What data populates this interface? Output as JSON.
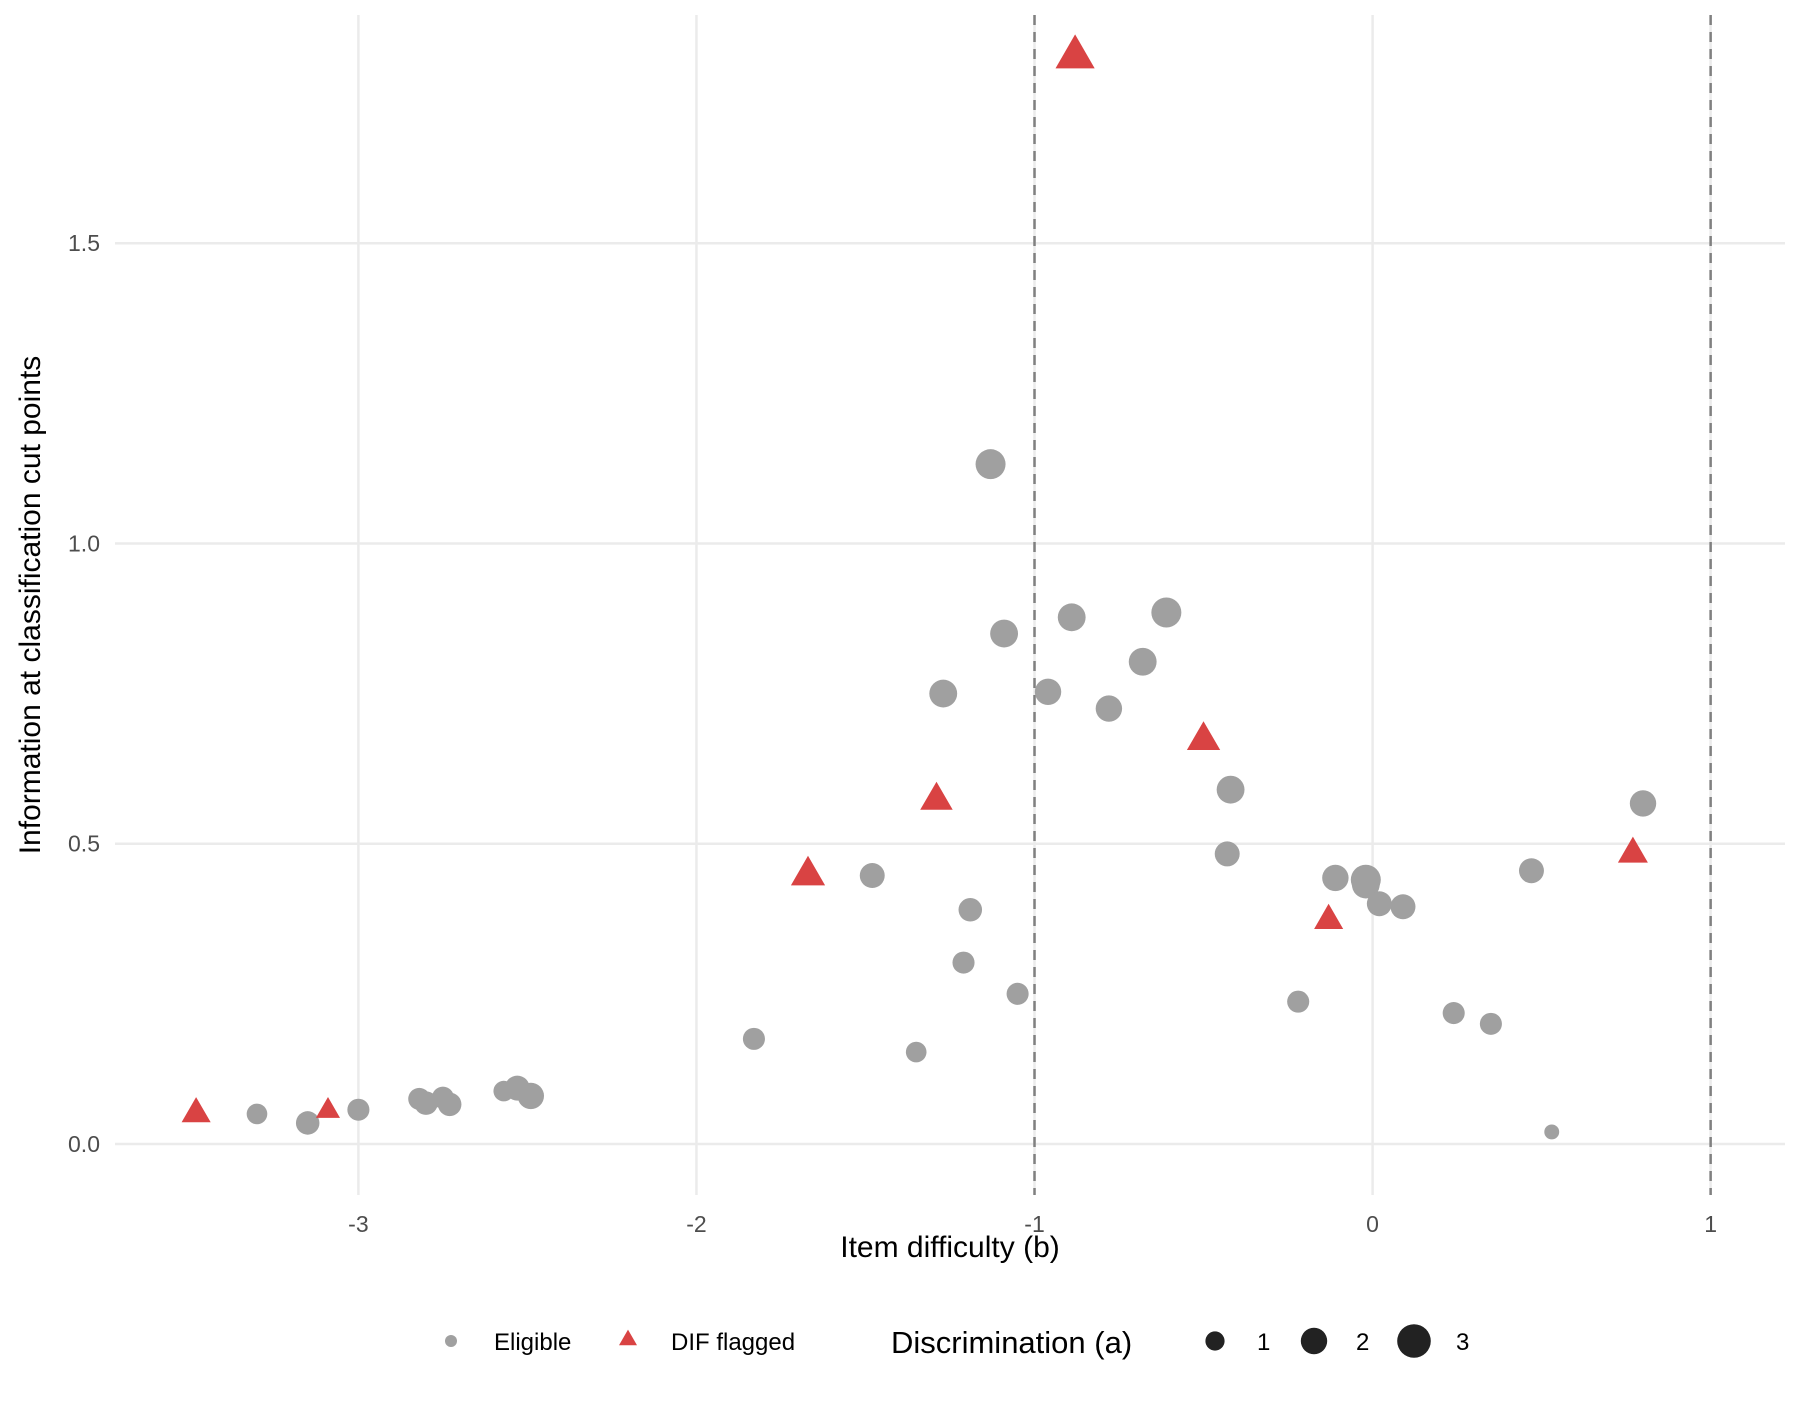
{
  "chart_data": {
    "type": "scatter",
    "xlabel": "Item difficulty (b)",
    "ylabel": "Information at classification cut points",
    "xlim": [
      -3.72,
      1.22
    ],
    "ylim": [
      -0.085,
      1.88
    ],
    "x_ticks": [
      -3,
      -2,
      -1,
      0,
      1
    ],
    "x_tick_labels": [
      "-3",
      "-2",
      "-1",
      "0",
      "1"
    ],
    "y_ticks": [
      0.0,
      0.5,
      1.0,
      1.5
    ],
    "y_tick_labels": [
      "0.0",
      "0.5",
      "1.0",
      "1.5"
    ],
    "grid": true,
    "cut_points": [
      -1,
      1
    ],
    "colors": {
      "eligible": "#a0a0a0",
      "dif": "#d94343",
      "grid": "#ebebeb",
      "cutline": "#808080",
      "size_key": "#222222"
    },
    "series": [
      {
        "name": "Eligible",
        "shape": "circle",
        "points": [
          {
            "x": -3.3,
            "y": 0.05,
            "a": 1.2
          },
          {
            "x": -3.15,
            "y": 0.035,
            "a": 1.6
          },
          {
            "x": -3.0,
            "y": 0.057,
            "a": 1.4
          },
          {
            "x": -2.82,
            "y": 0.075,
            "a": 1.4
          },
          {
            "x": -2.8,
            "y": 0.068,
            "a": 1.6
          },
          {
            "x": -2.75,
            "y": 0.077,
            "a": 1.4
          },
          {
            "x": -2.73,
            "y": 0.066,
            "a": 1.6
          },
          {
            "x": -2.57,
            "y": 0.088,
            "a": 1.2
          },
          {
            "x": -2.53,
            "y": 0.093,
            "a": 1.8
          },
          {
            "x": -2.49,
            "y": 0.08,
            "a": 2.0
          },
          {
            "x": -1.83,
            "y": 0.175,
            "a": 1.4
          },
          {
            "x": -1.48,
            "y": 0.447,
            "a": 1.8
          },
          {
            "x": -1.35,
            "y": 0.153,
            "a": 1.2
          },
          {
            "x": -1.27,
            "y": 0.75,
            "a": 2.2
          },
          {
            "x": -1.21,
            "y": 0.302,
            "a": 1.4
          },
          {
            "x": -1.19,
            "y": 0.39,
            "a": 1.6
          },
          {
            "x": -1.13,
            "y": 1.132,
            "a": 2.5
          },
          {
            "x": -1.09,
            "y": 0.85,
            "a": 2.2
          },
          {
            "x": -1.05,
            "y": 0.25,
            "a": 1.4
          },
          {
            "x": -0.96,
            "y": 0.753,
            "a": 2.0
          },
          {
            "x": -0.89,
            "y": 0.877,
            "a": 2.2
          },
          {
            "x": -0.78,
            "y": 0.725,
            "a": 2.0
          },
          {
            "x": -0.68,
            "y": 0.803,
            "a": 2.2
          },
          {
            "x": -0.61,
            "y": 0.885,
            "a": 2.5
          },
          {
            "x": -0.42,
            "y": 0.59,
            "a": 2.2
          },
          {
            "x": -0.43,
            "y": 0.483,
            "a": 1.8
          },
          {
            "x": -0.22,
            "y": 0.237,
            "a": 1.4
          },
          {
            "x": -0.11,
            "y": 0.443,
            "a": 2.0
          },
          {
            "x": -0.02,
            "y": 0.44,
            "a": 2.5
          },
          {
            "x": -0.02,
            "y": 0.432,
            "a": 2.2
          },
          {
            "x": 0.02,
            "y": 0.4,
            "a": 1.8
          },
          {
            "x": 0.09,
            "y": 0.395,
            "a": 1.8
          },
          {
            "x": 0.24,
            "y": 0.218,
            "a": 1.4
          },
          {
            "x": 0.35,
            "y": 0.2,
            "a": 1.4
          },
          {
            "x": 0.47,
            "y": 0.455,
            "a": 1.8
          },
          {
            "x": 0.53,
            "y": 0.02,
            "a": 0.4
          },
          {
            "x": 0.8,
            "y": 0.567,
            "a": 2.0
          }
        ]
      },
      {
        "name": "DIF flagged",
        "shape": "triangle",
        "points": [
          {
            "x": -3.48,
            "y": 0.05,
            "a": 1.8
          },
          {
            "x": -3.09,
            "y": 0.055,
            "a": 1.2
          },
          {
            "x": -1.67,
            "y": 0.447,
            "a": 2.4
          },
          {
            "x": -1.29,
            "y": 0.572,
            "a": 2.2
          },
          {
            "x": -0.88,
            "y": 1.81,
            "a": 3.0
          },
          {
            "x": -0.5,
            "y": 0.672,
            "a": 2.3
          },
          {
            "x": -0.13,
            "y": 0.372,
            "a": 1.8
          },
          {
            "x": 0.77,
            "y": 0.483,
            "a": 1.9
          }
        ]
      }
    ],
    "legend": {
      "placement": "bottom",
      "shape_entries": [
        "Eligible",
        "DIF flagged"
      ],
      "size_title": "Discrimination (a)",
      "size_entries": [
        {
          "label": "1",
          "a": 1
        },
        {
          "label": "2",
          "a": 2
        },
        {
          "label": "3",
          "a": 3
        }
      ]
    }
  }
}
